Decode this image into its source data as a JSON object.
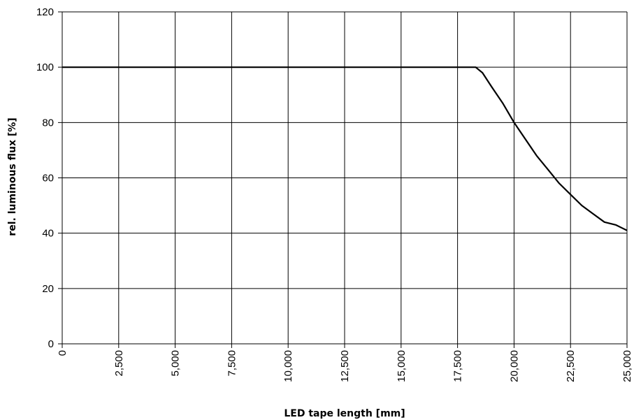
{
  "chart_data": {
    "type": "line",
    "xlabel": "LED tape length [mm]",
    "ylabel": "rel. luminous flux [%]",
    "xlim": [
      0,
      25000
    ],
    "ylim": [
      0,
      120
    ],
    "x_ticks": [
      0,
      2500,
      5000,
      7500,
      10000,
      12500,
      15000,
      17500,
      20000,
      22500,
      25000
    ],
    "x_tick_labels": [
      "0",
      "2,500",
      "5,000",
      "7,500",
      "10,000",
      "12,500",
      "15,000",
      "17,500",
      "20,000",
      "22,500",
      "25,000"
    ],
    "y_ticks": [
      0,
      20,
      40,
      60,
      80,
      100,
      120
    ],
    "y_tick_labels": [
      "0",
      "20",
      "40",
      "60",
      "80",
      "100",
      "120"
    ],
    "grid": true,
    "series": [
      {
        "color": "#000000",
        "x": [
          0,
          18300,
          18600,
          19000,
          19500,
          20000,
          20500,
          21000,
          21500,
          22000,
          22500,
          23000,
          23500,
          24000,
          24500,
          25000
        ],
        "y": [
          100,
          100,
          98,
          93,
          87,
          80,
          74,
          68,
          63,
          58,
          54,
          50,
          47,
          44,
          43,
          41
        ]
      }
    ]
  }
}
